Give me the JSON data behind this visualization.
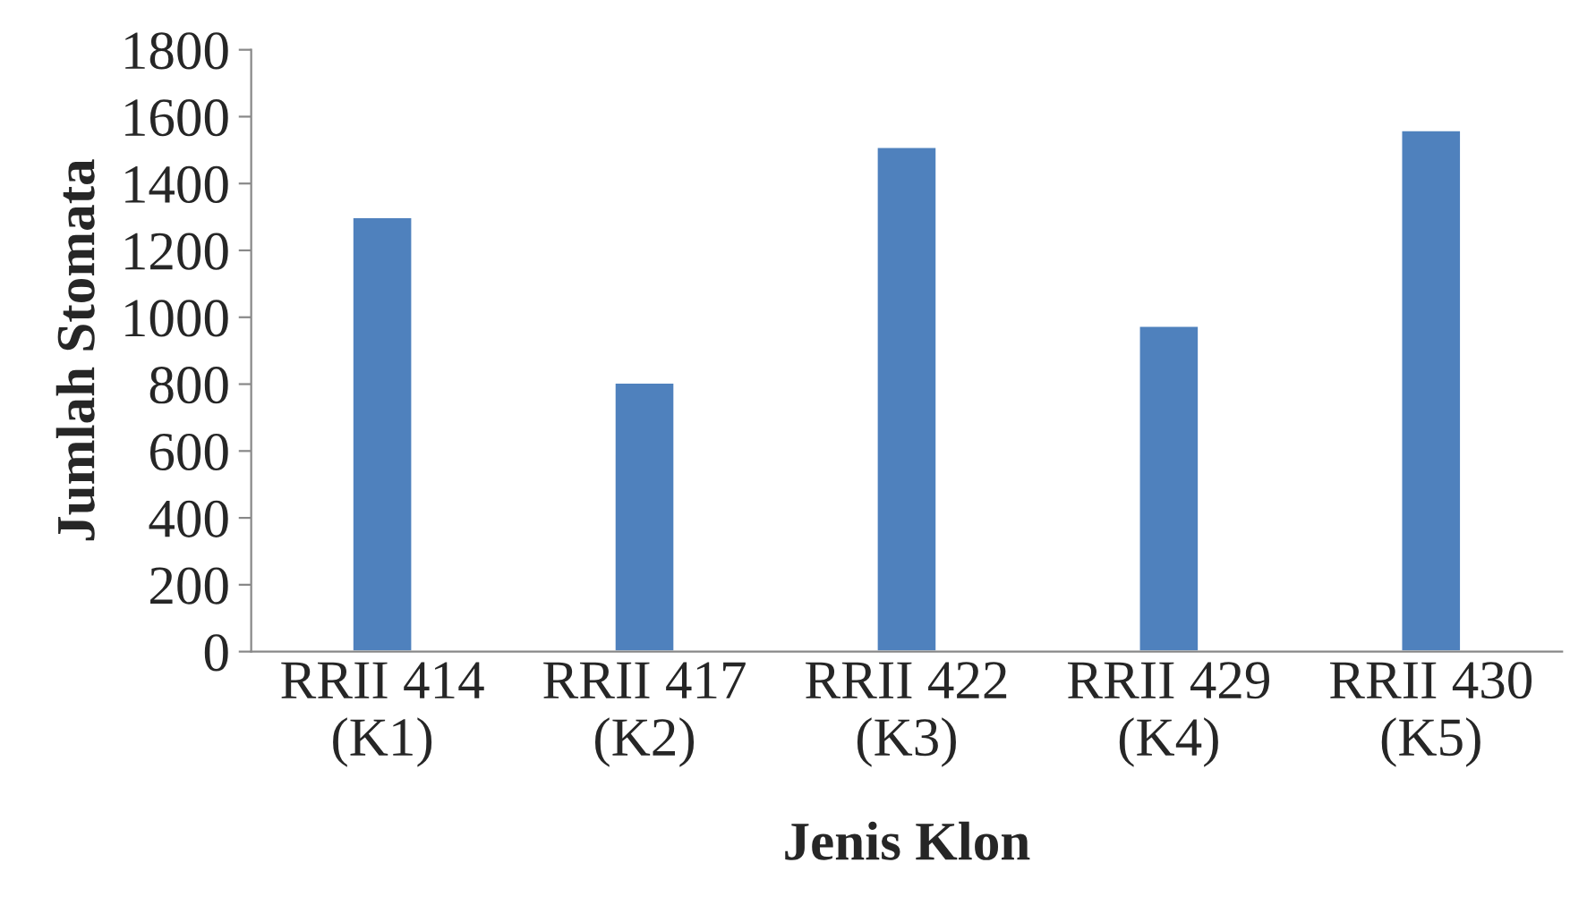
{
  "chart_data": {
    "type": "bar",
    "xlabel": "Jenis Klon",
    "ylabel": "Jumlah Stomata",
    "categories": [
      "RRII 414\n(K1)",
      "RRII 417\n(K2)",
      "RRII 422\n(K3)",
      "RRII 429\n(K4)",
      "RRII 430\n(K5)"
    ],
    "values": [
      1300,
      805,
      1510,
      975,
      1560
    ],
    "color": "#4f81bd",
    "ylim": [
      0,
      1800
    ],
    "yticks": [
      0,
      200,
      400,
      600,
      800,
      1000,
      1200,
      1400,
      1600,
      1800
    ],
    "grid": false
  }
}
